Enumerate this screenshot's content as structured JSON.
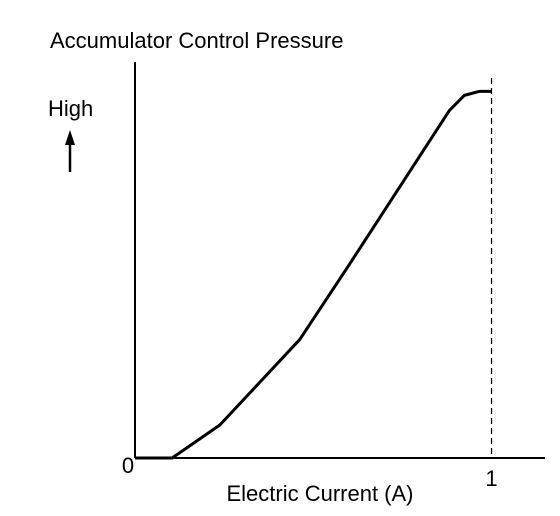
{
  "chart_data": {
    "type": "line",
    "title": "Accumulator Control Pressure",
    "y_label": "High",
    "x_label": "Electric Current (A)",
    "x": [
      0,
      0.104,
      0.238,
      0.462,
      0.602,
      0.882,
      0.924,
      0.966,
      1
    ],
    "series": [
      {
        "color": "#000000",
        "values": [
          0,
          0,
          0.09,
          0.323,
          0.529,
          0.948,
          0.989,
          1,
          1
        ]
      }
    ],
    "xlim": [
      0,
      1.15
    ],
    "xticks": [
      0,
      1
    ],
    "ylim": [
      0,
      1.08
    ],
    "reference_line_at_tick": 1
  }
}
